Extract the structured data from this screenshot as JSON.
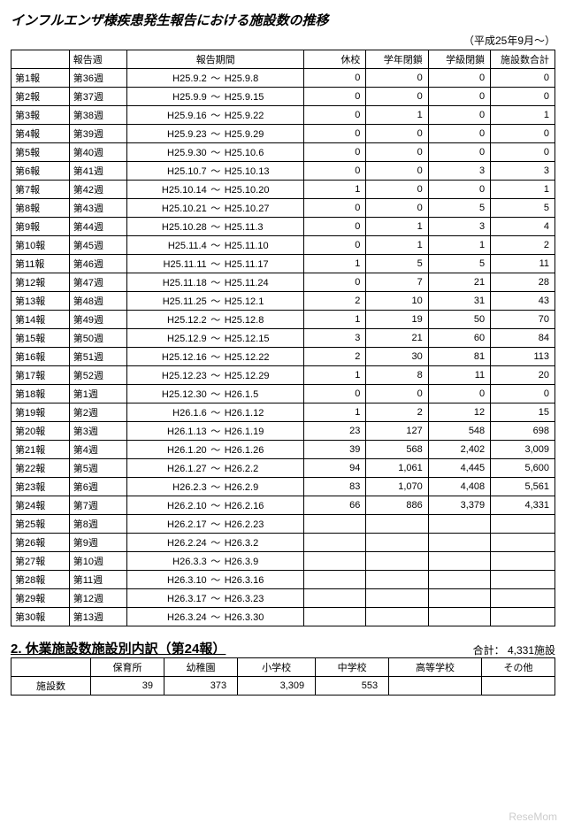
{
  "title": "インフルエンザ様疾患発生報告における施設数の推移",
  "subtitle": "（平成25年9月～）",
  "headers": {
    "report": "",
    "week": "報告週",
    "period": "報告期間",
    "kyuko": "休校",
    "gakunen": "学年閉鎖",
    "gakkyu": "学級閉鎖",
    "total": "施設数合計"
  },
  "rows": [
    {
      "r": "第1報",
      "w": "第36週",
      "pf": "H25.9.2",
      "pt": "H25.9.8",
      "a": "0",
      "b": "0",
      "c": "0",
      "d": "0"
    },
    {
      "r": "第2報",
      "w": "第37週",
      "pf": "H25.9.9",
      "pt": "H25.9.15",
      "a": "0",
      "b": "0",
      "c": "0",
      "d": "0"
    },
    {
      "r": "第3報",
      "w": "第38週",
      "pf": "H25.9.16",
      "pt": "H25.9.22",
      "a": "0",
      "b": "1",
      "c": "0",
      "d": "1"
    },
    {
      "r": "第4報",
      "w": "第39週",
      "pf": "H25.9.23",
      "pt": "H25.9.29",
      "a": "0",
      "b": "0",
      "c": "0",
      "d": "0"
    },
    {
      "r": "第5報",
      "w": "第40週",
      "pf": "H25.9.30",
      "pt": "H25.10.6",
      "a": "0",
      "b": "0",
      "c": "0",
      "d": "0"
    },
    {
      "r": "第6報",
      "w": "第41週",
      "pf": "H25.10.7",
      "pt": "H25.10.13",
      "a": "0",
      "b": "0",
      "c": "3",
      "d": "3"
    },
    {
      "r": "第7報",
      "w": "第42週",
      "pf": "H25.10.14",
      "pt": "H25.10.20",
      "a": "1",
      "b": "0",
      "c": "0",
      "d": "1"
    },
    {
      "r": "第8報",
      "w": "第43週",
      "pf": "H25.10.21",
      "pt": "H25.10.27",
      "a": "0",
      "b": "0",
      "c": "5",
      "d": "5"
    },
    {
      "r": "第9報",
      "w": "第44週",
      "pf": "H25.10.28",
      "pt": "H25.11.3",
      "a": "0",
      "b": "1",
      "c": "3",
      "d": "4"
    },
    {
      "r": "第10報",
      "w": "第45週",
      "pf": "H25.11.4",
      "pt": "H25.11.10",
      "a": "0",
      "b": "1",
      "c": "1",
      "d": "2"
    },
    {
      "r": "第11報",
      "w": "第46週",
      "pf": "H25.11.11",
      "pt": "H25.11.17",
      "a": "1",
      "b": "5",
      "c": "5",
      "d": "11"
    },
    {
      "r": "第12報",
      "w": "第47週",
      "pf": "H25.11.18",
      "pt": "H25.11.24",
      "a": "0",
      "b": "7",
      "c": "21",
      "d": "28"
    },
    {
      "r": "第13報",
      "w": "第48週",
      "pf": "H25.11.25",
      "pt": "H25.12.1",
      "a": "2",
      "b": "10",
      "c": "31",
      "d": "43"
    },
    {
      "r": "第14報",
      "w": "第49週",
      "pf": "H25.12.2",
      "pt": "H25.12.8",
      "a": "1",
      "b": "19",
      "c": "50",
      "d": "70"
    },
    {
      "r": "第15報",
      "w": "第50週",
      "pf": "H25.12.9",
      "pt": "H25.12.15",
      "a": "3",
      "b": "21",
      "c": "60",
      "d": "84"
    },
    {
      "r": "第16報",
      "w": "第51週",
      "pf": "H25.12.16",
      "pt": "H25.12.22",
      "a": "2",
      "b": "30",
      "c": "81",
      "d": "113"
    },
    {
      "r": "第17報",
      "w": "第52週",
      "pf": "H25.12.23",
      "pt": "H25.12.29",
      "a": "1",
      "b": "8",
      "c": "11",
      "d": "20"
    },
    {
      "r": "第18報",
      "w": "第1週",
      "pf": "H25.12.30",
      "pt": "H26.1.5",
      "a": "0",
      "b": "0",
      "c": "0",
      "d": "0"
    },
    {
      "r": "第19報",
      "w": "第2週",
      "pf": "H26.1.6",
      "pt": "H26.1.12",
      "a": "1",
      "b": "2",
      "c": "12",
      "d": "15"
    },
    {
      "r": "第20報",
      "w": "第3週",
      "pf": "H26.1.13",
      "pt": "H26.1.19",
      "a": "23",
      "b": "127",
      "c": "548",
      "d": "698"
    },
    {
      "r": "第21報",
      "w": "第4週",
      "pf": "H26.1.20",
      "pt": "H26.1.26",
      "a": "39",
      "b": "568",
      "c": "2,402",
      "d": "3,009"
    },
    {
      "r": "第22報",
      "w": "第5週",
      "pf": "H26.1.27",
      "pt": "H26.2.2",
      "a": "94",
      "b": "1,061",
      "c": "4,445",
      "d": "5,600"
    },
    {
      "r": "第23報",
      "w": "第6週",
      "pf": "H26.2.3",
      "pt": "H26.2.9",
      "a": "83",
      "b": "1,070",
      "c": "4,408",
      "d": "5,561"
    },
    {
      "r": "第24報",
      "w": "第7週",
      "pf": "H26.2.10",
      "pt": "H26.2.16",
      "a": "66",
      "b": "886",
      "c": "3,379",
      "d": "4,331"
    },
    {
      "r": "第25報",
      "w": "第8週",
      "pf": "H26.2.17",
      "pt": "H26.2.23",
      "a": "",
      "b": "",
      "c": "",
      "d": ""
    },
    {
      "r": "第26報",
      "w": "第9週",
      "pf": "H26.2.24",
      "pt": "H26.3.2",
      "a": "",
      "b": "",
      "c": "",
      "d": ""
    },
    {
      "r": "第27報",
      "w": "第10週",
      "pf": "H26.3.3",
      "pt": "H26.3.9",
      "a": "",
      "b": "",
      "c": "",
      "d": ""
    },
    {
      "r": "第28報",
      "w": "第11週",
      "pf": "H26.3.10",
      "pt": "H26.3.16",
      "a": "",
      "b": "",
      "c": "",
      "d": ""
    },
    {
      "r": "第29報",
      "w": "第12週",
      "pf": "H26.3.17",
      "pt": "H26.3.23",
      "a": "",
      "b": "",
      "c": "",
      "d": ""
    },
    {
      "r": "第30報",
      "w": "第13週",
      "pf": "H26.3.24",
      "pt": "H26.3.30",
      "a": "",
      "b": "",
      "c": "",
      "d": ""
    }
  ],
  "section2": {
    "title": "2. 休業施設数施設別内訳（第24報）",
    "totalLabel": "合計： 4,331施設",
    "headers": [
      "",
      "保育所",
      "幼稚園",
      "小学校",
      "中学校",
      "高等学校",
      "その他"
    ],
    "rowLabel": "施設数",
    "values": [
      "39",
      "373",
      "3,309",
      "553",
      "",
      ""
    ]
  },
  "watermark": "ReseMom"
}
